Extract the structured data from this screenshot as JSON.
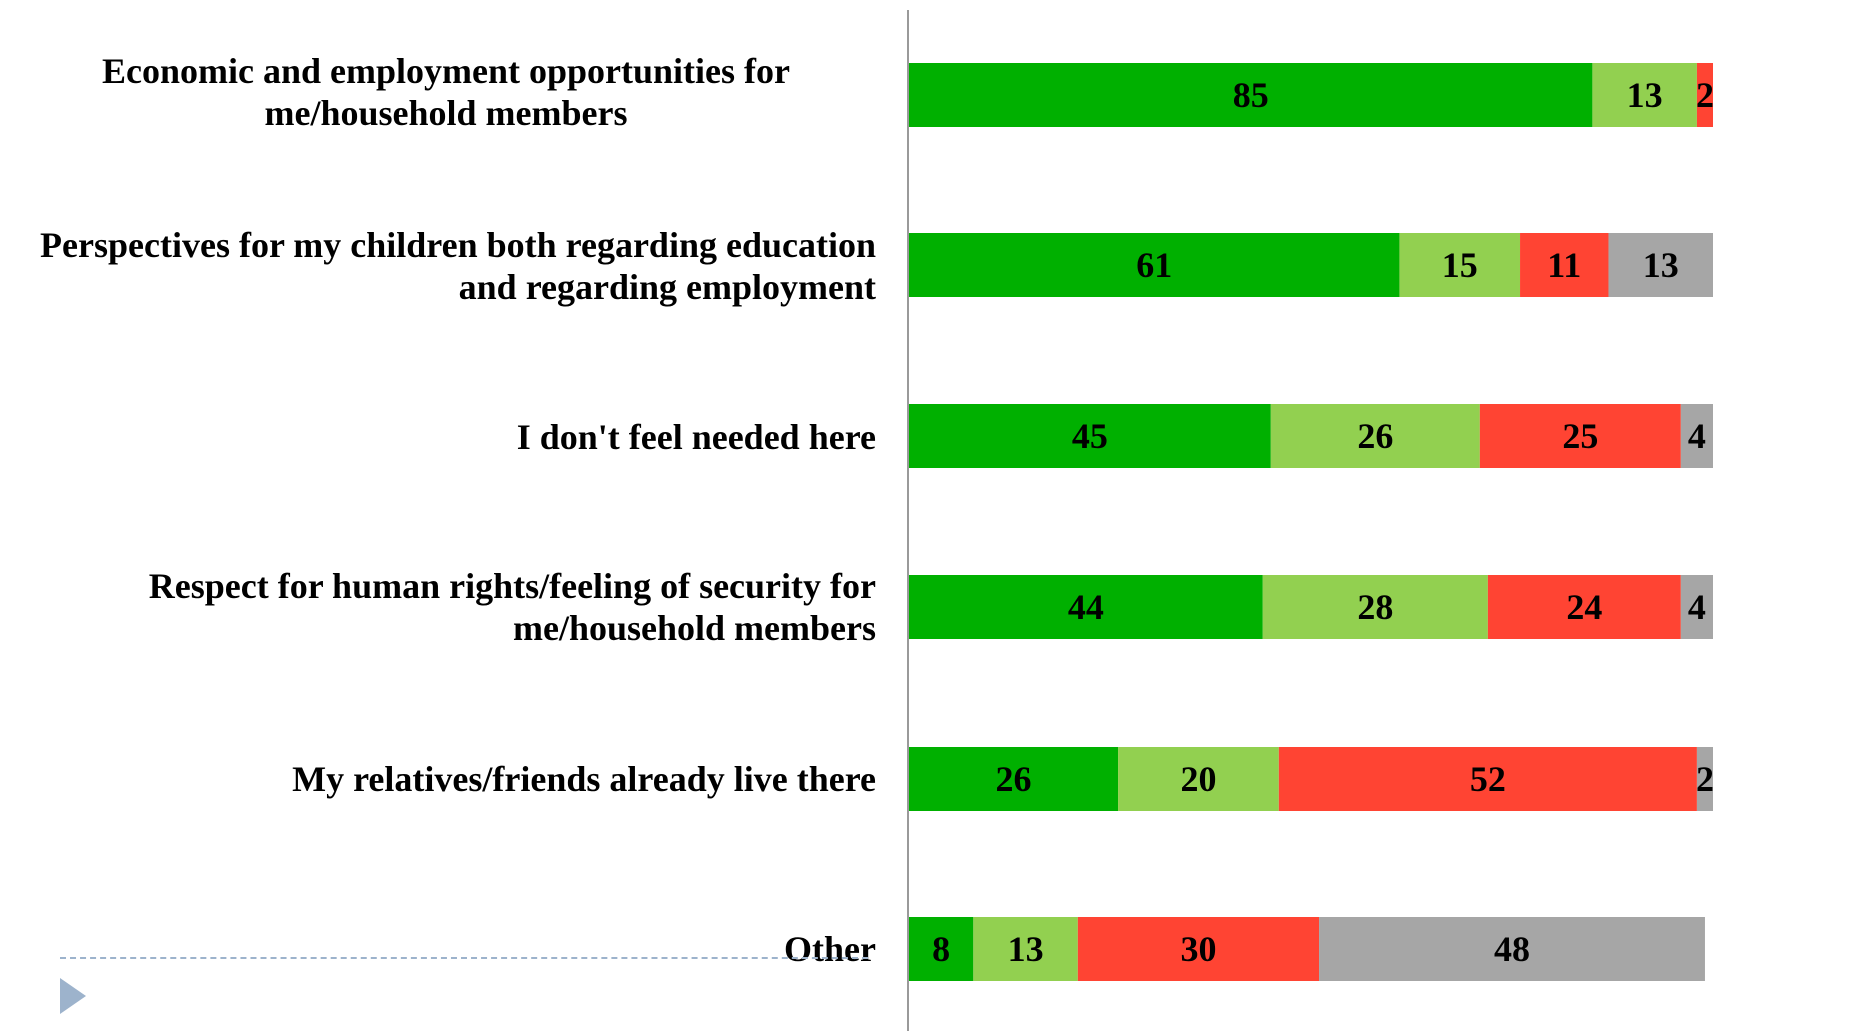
{
  "chart_data": {
    "type": "bar",
    "orientation": "horizontal-stacked",
    "categories": [
      "Economic and employment opportunities for\nme/household members",
      "Perspectives for my children both regarding education\nand regarding employment",
      "I don't feel needed here",
      "Respect for human rights/feeling of security for\nme/household members",
      "My relatives/friends already live there",
      "Other"
    ],
    "series": [
      {
        "color": "#00b000",
        "values": [
          85,
          61,
          45,
          44,
          26,
          8
        ]
      },
      {
        "color": "#92d050",
        "values": [
          13,
          15,
          26,
          28,
          20,
          13
        ]
      },
      {
        "color": "#ff4433",
        "values": [
          2,
          11,
          25,
          24,
          52,
          30
        ]
      },
      {
        "color": "#a6a6a6",
        "values": [
          0,
          13,
          4,
          4,
          2,
          48
        ]
      }
    ],
    "data_labels": [
      [
        "85",
        "13",
        "2",
        ""
      ],
      [
        "61",
        "15",
        "11",
        "13"
      ],
      [
        "45",
        "26",
        "25",
        "4"
      ],
      [
        "44",
        "28",
        "24",
        "4"
      ],
      [
        "26",
        "20",
        "52",
        "2"
      ],
      [
        "8",
        "13",
        "30",
        "48"
      ]
    ],
    "xlim": [
      0,
      100
    ],
    "grid": false,
    "legend": "none"
  },
  "icons": {
    "slide_marker": "play-triangle-icon"
  }
}
